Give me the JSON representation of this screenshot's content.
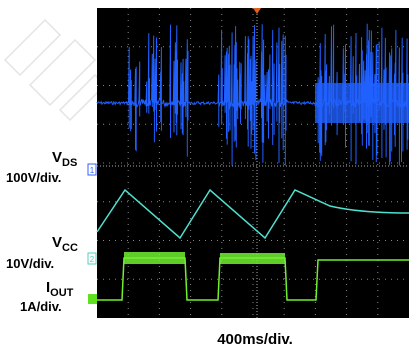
{
  "labels": [
    {
      "main": "V",
      "sub": "DS",
      "scale": "100V/div."
    },
    {
      "main": "V",
      "sub": "CC",
      "scale": "10V/div."
    },
    {
      "main": "I",
      "sub": "OUT",
      "scale": "1A/div."
    }
  ],
  "channel_markers": [
    "1",
    "2"
  ],
  "timebase": "400ms/div."
}
